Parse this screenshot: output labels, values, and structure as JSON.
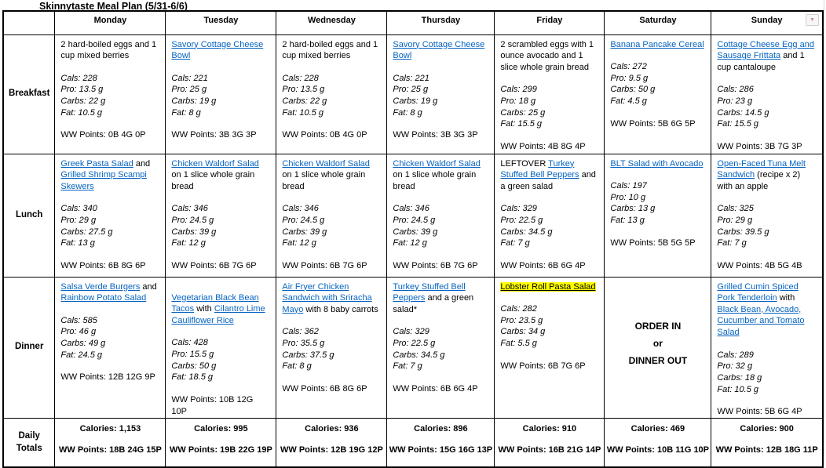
{
  "title": "Skinnytaste Meal Plan (5/31-6/6)",
  "icons": {
    "dropdown": "▼"
  },
  "colors": {
    "link": "#0563C1",
    "highlight": "#FFFF00"
  },
  "days": [
    "Monday",
    "Tuesday",
    "Wednesday",
    "Thursday",
    "Friday",
    "Saturday",
    "Sunday"
  ],
  "row_labels": {
    "breakfast": "Breakfast",
    "lunch": "Lunch",
    "dinner": "Dinner",
    "totals": "Daily Totals"
  },
  "labels": {
    "cals": "Cals",
    "pro": "Pro",
    "carbs": "Carbs",
    "fat": "Fat",
    "ww": "WW Points",
    "calories": "Calories"
  },
  "meals": {
    "breakfast": [
      {
        "segments": [
          {
            "text": "2 hard-boiled eggs and 1 cup mixed berries"
          }
        ],
        "cals": "228",
        "pro": "13.5 g",
        "carbs": "22 g",
        "fat": "10.5 g",
        "ww": "0B 4G 0P"
      },
      {
        "segments": [
          {
            "text": "Savory Cottage Cheese Bowl",
            "link": true
          }
        ],
        "cals": "221",
        "pro": "25 g",
        "carbs": "19 g",
        "fat": "8 g",
        "ww": "3B 3G 3P"
      },
      {
        "segments": [
          {
            "text": "2 hard-boiled eggs and 1 cup mixed berries"
          }
        ],
        "cals": "228",
        "pro": "13.5 g",
        "carbs": "22 g",
        "fat": "10.5 g",
        "ww": "0B 4G 0P"
      },
      {
        "segments": [
          {
            "text": "Savory Cottage Cheese Bowl",
            "link": true
          }
        ],
        "cals": "221",
        "pro": "25 g",
        "carbs": "19 g",
        "fat": "8 g",
        "ww": "3B 3G 3P"
      },
      {
        "segments": [
          {
            "text": "2 scrambled eggs with 1 ounce avocado and 1 slice whole grain bread"
          }
        ],
        "cals": "299",
        "pro": "18 g",
        "carbs": "25 g",
        "fat": "15.5 g",
        "ww": "4B 8G 4P"
      },
      {
        "segments": [
          {
            "text": "Banana Pancake Cereal",
            "link": true
          }
        ],
        "cals": "272",
        "pro": "9.5 g",
        "carbs": "50 g",
        "fat": "4.5 g",
        "ww": "5B 6G 5P"
      },
      {
        "segments": [
          {
            "text": "Cottage Cheese Egg and Sausage Frittata",
            "link": true
          },
          {
            "text": " and 1 cup cantaloupe"
          }
        ],
        "cals": "286",
        "pro": "23 g",
        "carbs": "14.5 g",
        "fat": "15.5 g",
        "ww": "3B 7G 3P"
      }
    ],
    "lunch": [
      {
        "segments": [
          {
            "text": "Greek Pasta Salad",
            "link": true
          },
          {
            "text": " and "
          },
          {
            "text": "Grilled Shrimp Scampi Skewers",
            "link": true
          }
        ],
        "cals": "340",
        "pro": "29 g",
        "carbs": "27.5 g",
        "fat": "13 g",
        "ww": "6B 8G 6P"
      },
      {
        "segments": [
          {
            "text": "Chicken Waldorf Salad",
            "link": true
          },
          {
            "text": " on 1 slice whole grain bread"
          }
        ],
        "cals": "346",
        "pro": "24.5 g",
        "carbs": "39 g",
        "fat": "12 g",
        "ww": "6B 7G 6P"
      },
      {
        "segments": [
          {
            "text": "Chicken Waldorf Salad",
            "link": true
          },
          {
            "text": " on 1 slice whole grain bread"
          }
        ],
        "cals": "346",
        "pro": "24.5 g",
        "carbs": "39 g",
        "fat": "12 g",
        "ww": "6B 7G 6P"
      },
      {
        "segments": [
          {
            "text": "Chicken Waldorf Salad",
            "link": true
          },
          {
            "text": " on 1 slice whole grain bread"
          }
        ],
        "cals": "346",
        "pro": "24.5 g",
        "carbs": "39 g",
        "fat": "12 g",
        "ww": "6B 7G 6P"
      },
      {
        "segments": [
          {
            "text": "LEFTOVER "
          },
          {
            "text": "Turkey Stuffed Bell Peppers",
            "link": true
          },
          {
            "text": " and a green salad"
          }
        ],
        "cals": "329",
        "pro": "22.5 g",
        "carbs": "34.5 g",
        "fat": "7 g",
        "ww": "6B 6G 4P"
      },
      {
        "segments": [
          {
            "text": "BLT Salad with Avocado",
            "link": true
          }
        ],
        "cals": "197",
        "pro": "10 g",
        "carbs": "13 g",
        "fat": "13 g",
        "ww": "5B 5G 5P"
      },
      {
        "segments": [
          {
            "text": "Open-Faced Tuna Melt Sandwich",
            "link": true
          },
          {
            "text": " (recipe x 2) with an apple"
          }
        ],
        "cals": "325",
        "pro": "29 g",
        "carbs": "39.5 g",
        "fat": "7 g",
        "ww": "4B 5G 4B"
      }
    ],
    "dinner": [
      {
        "segments": [
          {
            "text": "Salsa Verde Burgers",
            "link": true
          },
          {
            "text": " and "
          },
          {
            "text": "Rainbow Potato Salad",
            "link": true
          }
        ],
        "cals": "585",
        "pro": "46 g",
        "carbs": "49 g",
        "fat": "24.5 g",
        "ww": "12B 12G 9P"
      },
      {
        "lead_blank": true,
        "segments": [
          {
            "text": "Vegetarian Black Bean Tacos",
            "link": true
          },
          {
            "text": " with "
          },
          {
            "text": "Cilantro Lime Cauliflower Rice",
            "link": true
          }
        ],
        "cals": "428",
        "pro": "15.5 g",
        "carbs": "50 g",
        "fat": "18.5 g",
        "ww": "10B 12G 10P"
      },
      {
        "segments": [
          {
            "text": "Air Fryer Chicken Sandwich with Sriracha Mayo",
            "link": true
          },
          {
            "text": " with 8 baby carrots"
          }
        ],
        "cals": "362",
        "pro": "35.5 g",
        "carbs": "37.5 g",
        "fat": "8 g",
        "ww": "6B 8G 6P"
      },
      {
        "segments": [
          {
            "text": "Turkey Stuffed Bell Peppers",
            "link": true
          },
          {
            "text": " and a green salad*"
          }
        ],
        "cals": "329",
        "pro": "22.5 g",
        "carbs": "34.5 g",
        "fat": "7 g",
        "ww": "6B 6G 4P"
      },
      {
        "segments": [
          {
            "text": "Lobster Roll Pasta Salad",
            "link": true,
            "highlight": true
          }
        ],
        "cals": "282",
        "pro": "23.5 g",
        "carbs": "34 g",
        "fat": "5.5 g",
        "ww": "6B 7G 6P"
      },
      {
        "special": [
          "ORDER IN",
          "or",
          "DINNER OUT"
        ]
      },
      {
        "segments": [
          {
            "text": "Grilled Cumin Spiced Pork Tenderloin",
            "link": true
          },
          {
            "text": " with "
          },
          {
            "text": "Black Bean, Avocado, Cucumber and Tomato Salad",
            "link": true
          }
        ],
        "cals": "289",
        "pro": "32 g",
        "carbs": "18 g",
        "fat": "10.5 g",
        "ww": "5B 6G 4P"
      }
    ]
  },
  "totals": [
    {
      "calories": "1,153",
      "ww": "18B 24G 15P"
    },
    {
      "calories": "995",
      "ww": "19B 22G 19P"
    },
    {
      "calories": "936",
      "ww": "12B 19G 12P"
    },
    {
      "calories": "896",
      "ww": "15G 16G 13P"
    },
    {
      "calories": "910",
      "ww": "16B 21G 14P"
    },
    {
      "calories": "469",
      "ww": "10B 11G 10P"
    },
    {
      "calories": "900",
      "ww": "12B 18G 11P"
    }
  ]
}
